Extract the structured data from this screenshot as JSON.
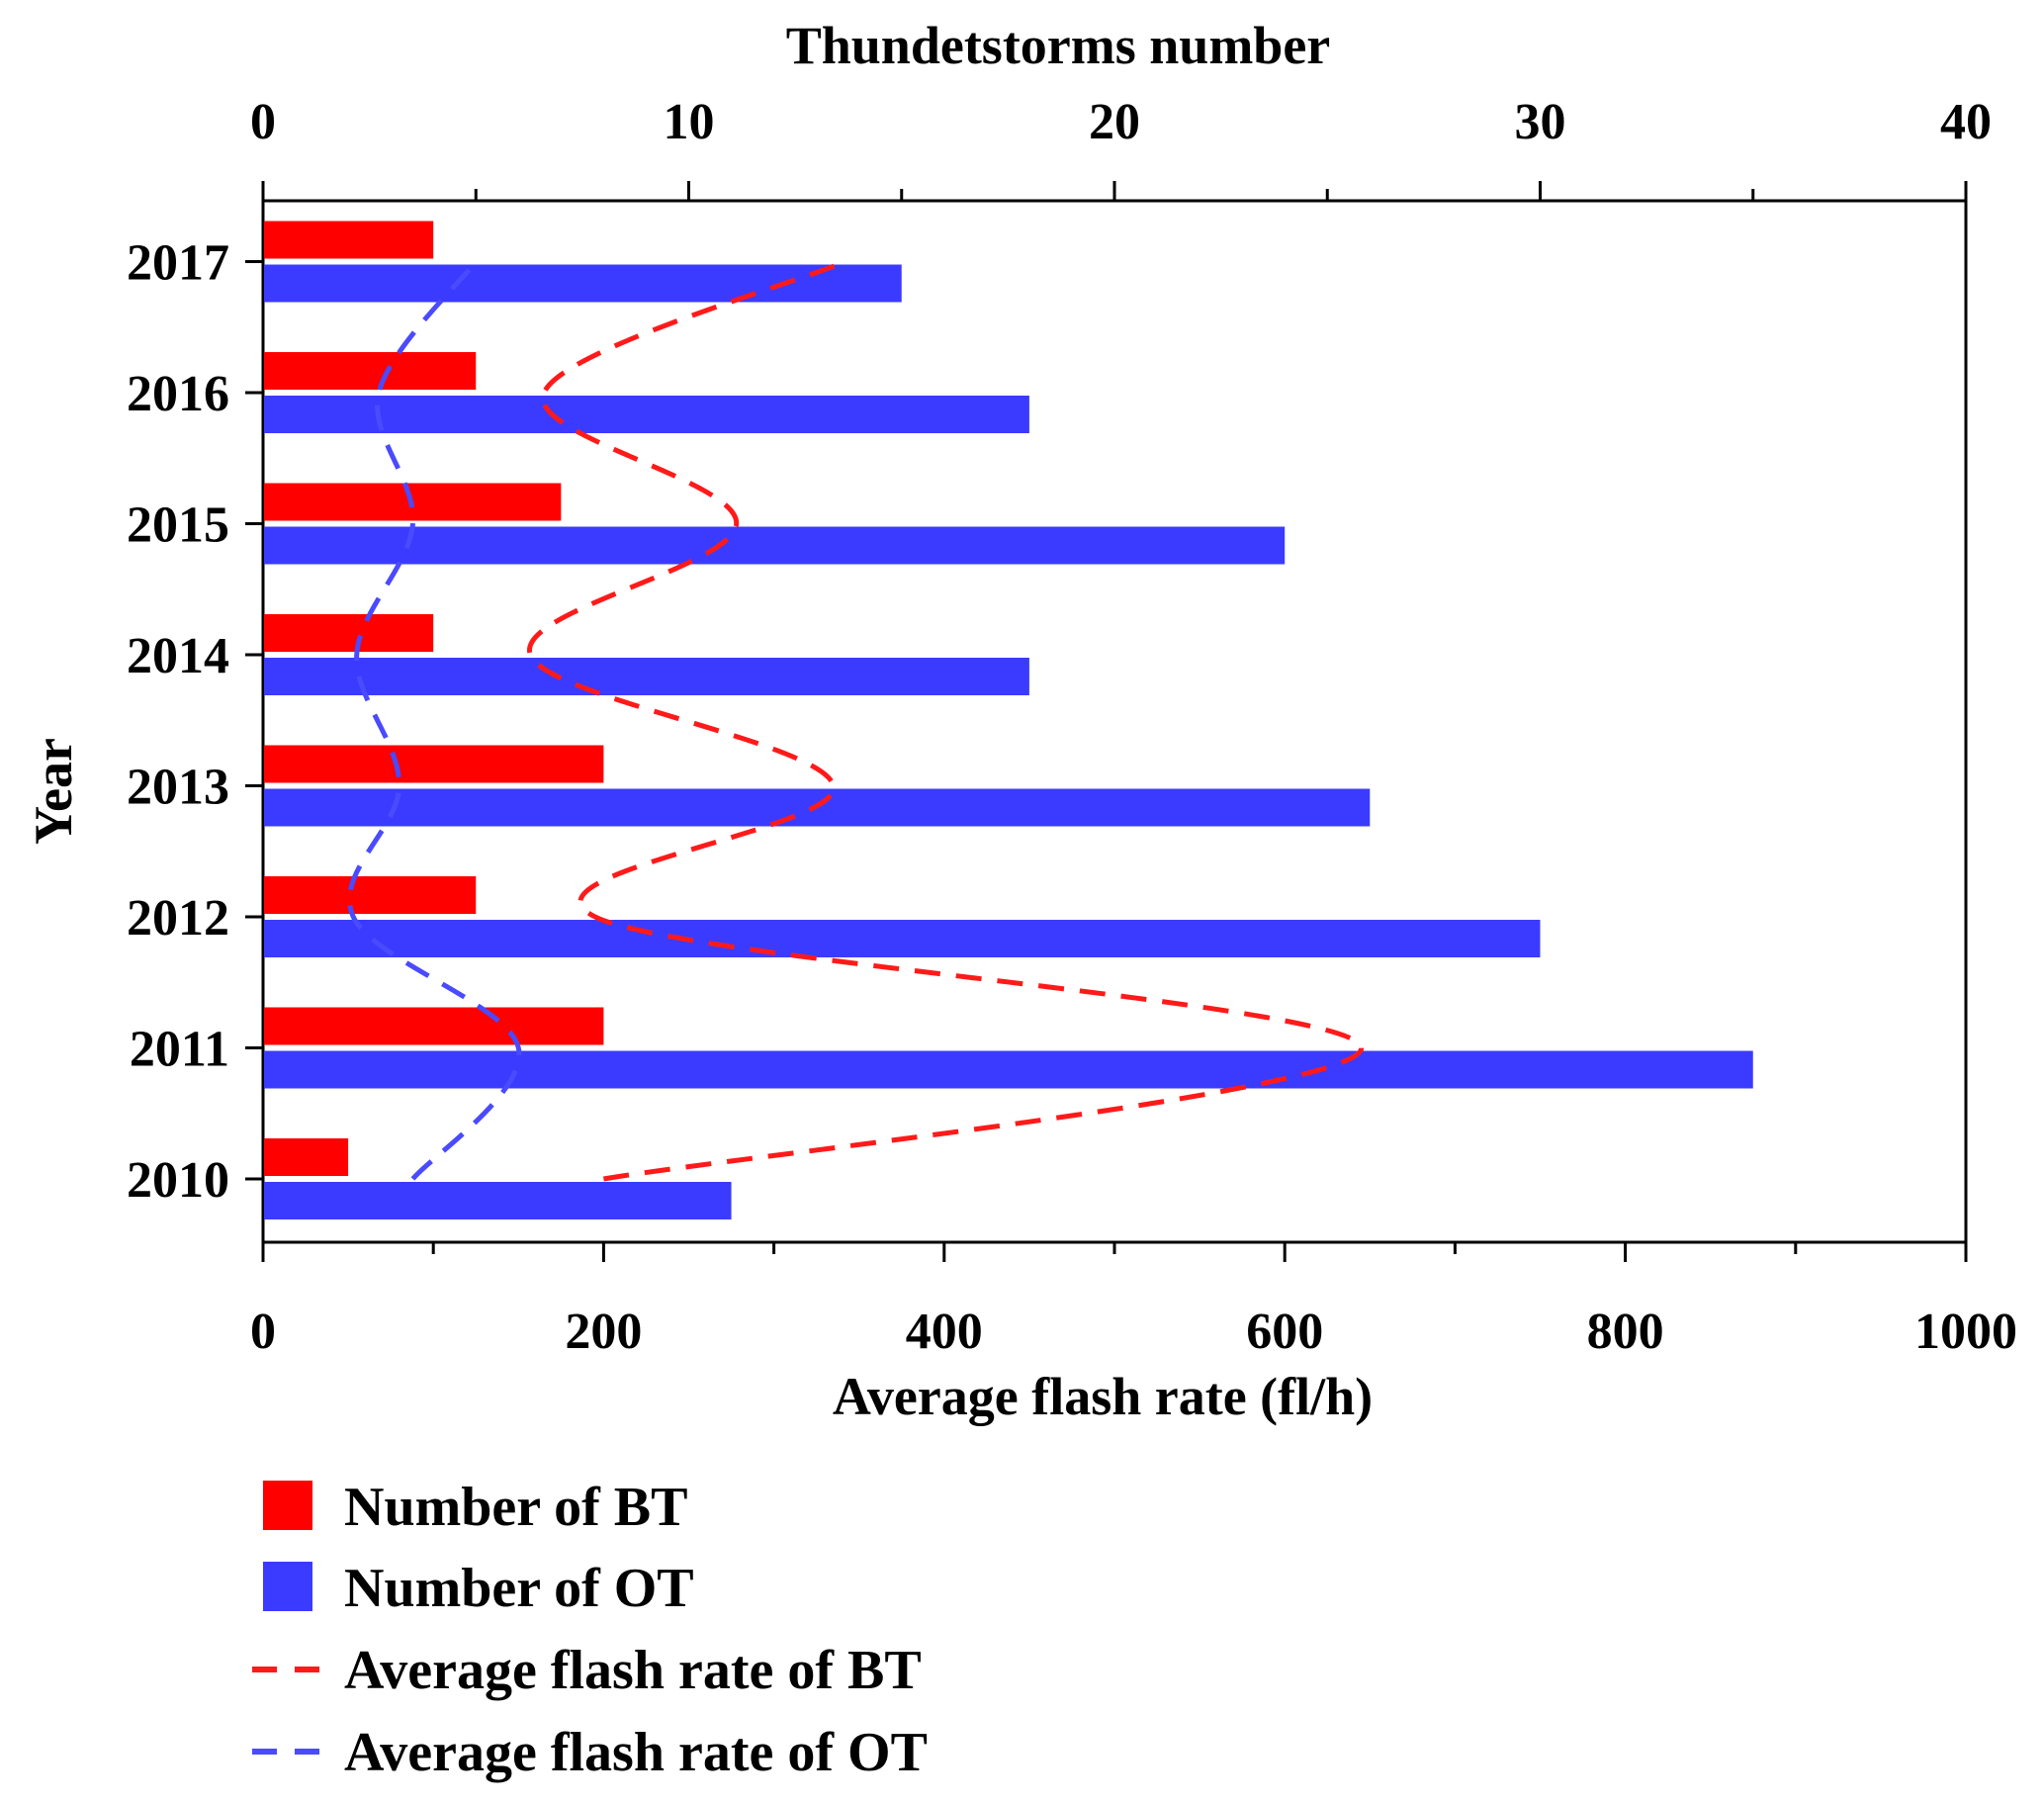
{
  "chart_data": {
    "type": "bar",
    "orientation": "horizontal",
    "categories": [
      "2010",
      "2011",
      "2012",
      "2013",
      "2014",
      "2015",
      "2016",
      "2017"
    ],
    "top_axis": {
      "label": "Thundetstorms number",
      "range": [
        0,
        40
      ],
      "ticks": [
        "0",
        "10",
        "20",
        "30",
        "40"
      ]
    },
    "bottom_axis": {
      "label": "Average flash rate (fl/h)",
      "range": [
        0,
        1000
      ],
      "ticks": [
        "0",
        "200",
        "400",
        "600",
        "800",
        "1000"
      ]
    },
    "y_axis": {
      "label": "Year"
    },
    "series": [
      {
        "name": "Number of BT",
        "kind": "bar",
        "axis": "top",
        "color": "#ff0000",
        "values": [
          2,
          8,
          5,
          8,
          4,
          7,
          5,
          4
        ]
      },
      {
        "name": "Number of OT",
        "kind": "bar",
        "axis": "top",
        "color": "#3b3bff",
        "values": [
          11,
          35,
          30,
          26,
          18,
          24,
          18,
          15
        ]
      },
      {
        "name": "Average flash rate of BT",
        "kind": "dashed-line",
        "axis": "bottom",
        "color": "#ff1a1a",
        "values": [
          200,
          645,
          195,
          335,
          157,
          278,
          165,
          342
        ]
      },
      {
        "name": "Average flash rate of OT",
        "kind": "dashed-line",
        "axis": "bottom",
        "color": "#4a4aff",
        "values": [
          88,
          150,
          53,
          80,
          55,
          88,
          68,
          125
        ]
      }
    ],
    "legend": {
      "placement": "bottom-left",
      "items": [
        {
          "label": "Number of BT",
          "symbol": "rect",
          "color": "#ff0000"
        },
        {
          "label": "Number of OT",
          "symbol": "rect",
          "color": "#3b3bff"
        },
        {
          "label": "Average flash rate of BT",
          "symbol": "dash",
          "color": "#ff1a1a"
        },
        {
          "label": "Average flash rate of OT",
          "symbol": "dash",
          "color": "#4a4aff"
        }
      ]
    }
  }
}
